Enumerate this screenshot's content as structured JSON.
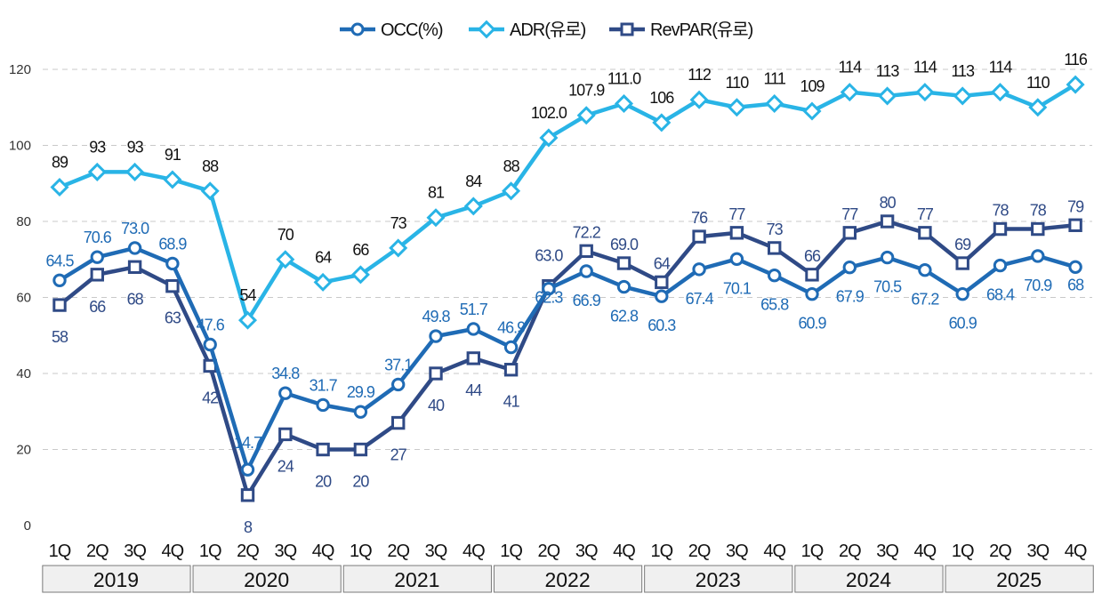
{
  "chart_data": {
    "type": "line",
    "title": "",
    "xlabel": "",
    "ylabel": "",
    "ylim": [
      0,
      120
    ],
    "yticks": [
      0,
      20,
      40,
      60,
      80,
      100,
      120
    ],
    "grid": "horizontal dashed",
    "legend_position": "top-center",
    "quarters": [
      "1Q",
      "2Q",
      "3Q",
      "4Q",
      "1Q",
      "2Q",
      "3Q",
      "4Q",
      "1Q",
      "2Q",
      "3Q",
      "4Q",
      "1Q",
      "2Q",
      "3Q",
      "4Q",
      "1Q",
      "2Q",
      "3Q",
      "4Q",
      "1Q",
      "2Q",
      "3Q",
      "4Q",
      "1Q",
      "2Q",
      "3Q",
      "4Q"
    ],
    "years": [
      "2019",
      "2020",
      "2021",
      "2022",
      "2023",
      "2024",
      "2025"
    ],
    "series": [
      {
        "name": "OCC(%)",
        "color": "#1f6bb5",
        "label_color": "#1f6bb5",
        "marker": "circle",
        "values": [
          64.5,
          70.6,
          73.0,
          68.9,
          47.6,
          14.7,
          34.8,
          31.7,
          29.9,
          37.1,
          49.8,
          51.7,
          46.9,
          62.3,
          66.9,
          62.8,
          60.3,
          67.4,
          70.1,
          65.8,
          60.9,
          67.9,
          70.5,
          67.2,
          60.9,
          68.4,
          70.9,
          68
        ],
        "labels": [
          "64.5",
          "70.6",
          "73.0",
          "68.9",
          "47.6",
          "14.7",
          "34.8",
          "31.7",
          "29.9",
          "37.1",
          "49.8",
          "51.7",
          "46.9",
          "62.3",
          "66.9",
          "62.8",
          "60.3",
          "67.4",
          "70.1",
          "65.8",
          "60.9",
          "67.9",
          "70.5",
          "67.2",
          "60.9",
          "68.4",
          "70.9",
          "68"
        ]
      },
      {
        "name": "ADR(유로)",
        "color": "#29b4e6",
        "label_color": "#111111",
        "marker": "diamond",
        "values": [
          89,
          93,
          93,
          91,
          88,
          54,
          70,
          64,
          66,
          73,
          81,
          84,
          88,
          102.0,
          107.9,
          111.0,
          106,
          112,
          110,
          111,
          109,
          114,
          113,
          114,
          113,
          114,
          110,
          116
        ],
        "labels": [
          "89",
          "93",
          "93",
          "91",
          "88",
          "54",
          "70",
          "64",
          "66",
          "73",
          "81",
          "84",
          "88",
          "102.0",
          "107.9",
          "111.0",
          "106",
          "112",
          "110",
          "111",
          "109",
          "114",
          "113",
          "114",
          "113",
          "114",
          "110",
          "116"
        ]
      },
      {
        "name": "RevPAR(유로)",
        "color": "#2f4a86",
        "label_color": "#2f4a86",
        "marker": "square",
        "values": [
          58,
          66,
          68,
          63,
          42,
          8,
          24,
          20,
          20,
          27,
          40,
          44,
          41,
          63.0,
          72.2,
          69.0,
          64,
          76,
          77,
          73,
          66,
          77,
          80,
          77,
          69,
          78,
          78,
          79
        ],
        "labels": [
          "58",
          "66",
          "68",
          "63",
          "42",
          "8",
          "24",
          "20",
          "20",
          "27",
          "40",
          "44",
          "41",
          "63.0",
          "72.2",
          "69.0",
          "64",
          "76",
          "77",
          "73",
          "66",
          "77",
          "80",
          "77",
          "69",
          "78",
          "78",
          "79"
        ]
      }
    ]
  }
}
